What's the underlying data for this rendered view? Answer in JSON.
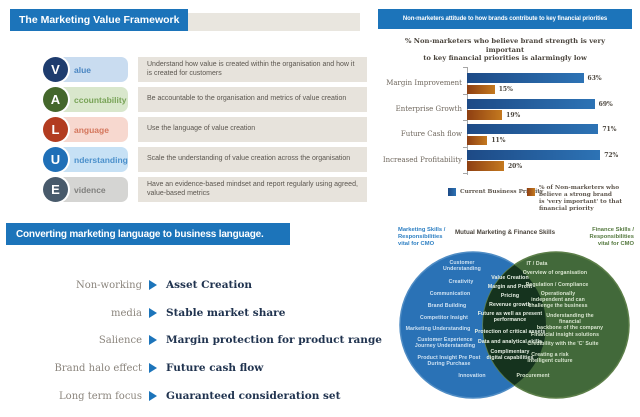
{
  "framework": {
    "title": "The Marketing Value Framework",
    "rows": [
      {
        "letter": "V",
        "suffix": "alue",
        "description": "Understand how value is created within the organisation and how it is created for customers",
        "circle_color": "#1e3c6e",
        "row_color": "#c9dcf0",
        "suffix_color": "#4a86c2"
      },
      {
        "letter": "A",
        "suffix": "ccountability",
        "description": "Be accountable to the organisation and metrics of value creation",
        "circle_color": "#44672b",
        "row_color": "#d9e7cc",
        "suffix_color": "#78a357"
      },
      {
        "letter": "L",
        "suffix": "anguage",
        "description": "Use the language of value creation",
        "circle_color": "#b23c20",
        "row_color": "#f7d8cf",
        "suffix_color": "#d4765c"
      },
      {
        "letter": "U",
        "suffix": "nderstanding",
        "description": "Scale the understanding of value creation across the organisation",
        "circle_color": "#1f6fb7",
        "row_color": "#c7e1f5",
        "suffix_color": "#4b90cb"
      },
      {
        "letter": "E",
        "suffix": "vidence",
        "description": "Have an evidence-based mindset and report regularly using agreed, value-based metrics",
        "circle_color": "#485a6b",
        "row_color": "#d5d5d3",
        "suffix_color": "#80807e"
      }
    ]
  },
  "chart_data": {
    "type": "bar",
    "orientation": "horizontal",
    "title": "Non-marketers attitude to how brands contribute to key financial priorities",
    "subtitle": "% Non-marketers who believe brand strength is very important\nto key financial priorities is alarmingly low",
    "categories": [
      "Margin Improvement",
      "Enterprise Growth",
      "Future Cash flow",
      "Increased Profitability"
    ],
    "series": [
      {
        "name": "Current Business Priority",
        "color_start": "#1d4a86",
        "color_end": "#2d73b5",
        "values": [
          63,
          69,
          71,
          72
        ]
      },
      {
        "name": "% of Non-marketers who believe a strong brand\nis 'very important' to that financial priority",
        "color_start": "#8e3f12",
        "color_end": "#c4791f",
        "values": [
          15,
          19,
          11,
          20
        ]
      }
    ],
    "value_suffix": "%",
    "xlim": [
      0,
      100
    ],
    "grid": false,
    "legend_position": "bottom"
  },
  "converting": {
    "title": "Converting marketing language to business language.",
    "rows": [
      {
        "term": "Non-working",
        "result": "Asset Creation"
      },
      {
        "term": "media",
        "result": "Stable market share"
      },
      {
        "term": "Salience",
        "result": "Margin protection for product range"
      },
      {
        "term": "Brand halo effect",
        "result": "Future cash flow"
      },
      {
        "term": "Long term focus",
        "result": "Guaranteed consideration set"
      }
    ]
  },
  "venn": {
    "left_label": "Marketing Skills /\nResponsibilities\nvital for CMO",
    "center_label": "Mutual Marketing & Finance Skills",
    "right_label": "Finance Skills /\nResponsibilities\nvital for CMO",
    "left_color": "#2a72b6",
    "left_stroke": "#4f8cc4",
    "right_color": "#42693a",
    "right_stroke": "#5c7f49",
    "overlap_color": "#15331e",
    "left_text_color": "#cfe2f3",
    "center_text_color": "#e9f1e6",
    "right_text_color": "#d8e5cf",
    "left_items": [
      "Customer\nUnderstanding",
      "Creativity",
      "Communication",
      "Brand Building",
      "Competitor Insight",
      "Marketing Understanding",
      "Customer Experience\nJourney Understanding",
      "Product Insight Pre Post\nDuring Purchase",
      "Innovation"
    ],
    "center_items": [
      "Value Creation",
      "Margin and Profit",
      "Pricing",
      "Revenue growth",
      "Future as well as present\nperformance",
      "Protection of critical assets",
      "Data and analytical skills",
      "Complimentary\ndigital capabilities"
    ],
    "right_items": [
      "IT / Data",
      "Overview of organisation",
      "Regulation / Compliance",
      "Operationally\nindependent and can\nchallenge the business",
      "Understanding the financial\nbackbone of the company",
      "Financial insight solutions",
      "Credibility with the 'C' Suite",
      "Creating a risk\nintelligent culture",
      "Procurement"
    ]
  },
  "accent": {
    "header_blue": "#1c74ba",
    "beige": "#e9e6df"
  }
}
